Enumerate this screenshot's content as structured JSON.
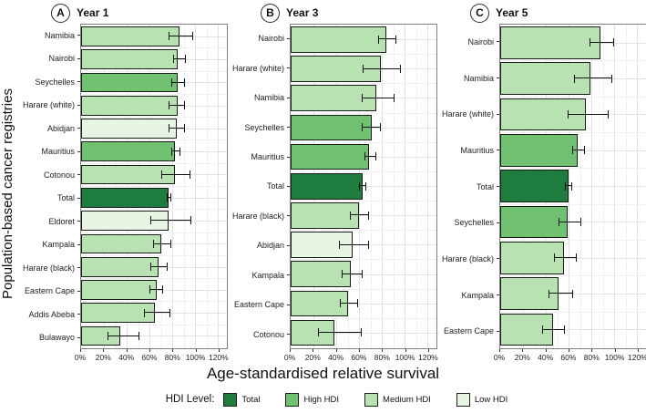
{
  "y_axis_label": "Population-based cancer registries",
  "x_axis_label": "Age-standardised relative survival",
  "legend": {
    "title": "HDI Level:",
    "items": [
      {
        "label": "Total",
        "key": "total"
      },
      {
        "label": "High HDI",
        "key": "high"
      },
      {
        "label": "Medium HDI",
        "key": "medium"
      },
      {
        "label": "Low HDI",
        "key": "low"
      }
    ]
  },
  "colors": {
    "total": "#1d7c3e",
    "high": "#70c272",
    "medium": "#b8e2b1",
    "low": "#e9f5e4",
    "bar_outline": "#1a1a1a",
    "panel_border": "#7f7f7f",
    "grid_major": "#e2e2e2",
    "grid_minor": "#f0f0f0"
  },
  "axis": {
    "x_max": 128,
    "xlim": [
      0,
      120
    ],
    "grid": true,
    "ticks": [
      {
        "value": 0,
        "label": "0%"
      },
      {
        "value": 20,
        "label": "20%"
      },
      {
        "value": 40,
        "label": "40%"
      },
      {
        "value": 60,
        "label": "60%"
      },
      {
        "value": 80,
        "label": "80%"
      },
      {
        "value": 100,
        "label": "100%"
      },
      {
        "value": 120,
        "label": "120%"
      }
    ]
  },
  "chart_data": [
    {
      "type": "bar",
      "panel": "A",
      "title": "Year 1",
      "xlabel": "Age-standardised relative survival",
      "ylabel": "Population-based cancer registries",
      "legend_position": "bottom",
      "bars": [
        {
          "label": "Namibia",
          "hdi": "medium",
          "value": 86,
          "ci_low": 77,
          "ci_high": 98
        },
        {
          "label": "Nairobi",
          "hdi": "medium",
          "value": 85,
          "ci_low": 81,
          "ci_high": 92
        },
        {
          "label": "Seychelles",
          "hdi": "high",
          "value": 85,
          "ci_low": 79,
          "ci_high": 91
        },
        {
          "label": "Harare (white)",
          "hdi": "medium",
          "value": 85,
          "ci_low": 77,
          "ci_high": 91
        },
        {
          "label": "Abidjan",
          "hdi": "low",
          "value": 84,
          "ci_low": 77,
          "ci_high": 91
        },
        {
          "label": "Mauritius",
          "hdi": "high",
          "value": 82,
          "ci_low": 79,
          "ci_high": 87
        },
        {
          "label": "Cotonou",
          "hdi": "medium",
          "value": 82,
          "ci_low": 70,
          "ci_high": 96
        },
        {
          "label": "Total",
          "hdi": "total",
          "value": 77,
          "ci_low": 75,
          "ci_high": 79
        },
        {
          "label": "Eldoret",
          "hdi": "low",
          "value": 77,
          "ci_low": 61,
          "ci_high": 97
        },
        {
          "label": "Kampala",
          "hdi": "medium",
          "value": 70,
          "ci_low": 63,
          "ci_high": 79
        },
        {
          "label": "Harare (black)",
          "hdi": "medium",
          "value": 68,
          "ci_low": 61,
          "ci_high": 76
        },
        {
          "label": "Eastern Cape",
          "hdi": "medium",
          "value": 66,
          "ci_low": 60,
          "ci_high": 72
        },
        {
          "label": "Addis Abeba",
          "hdi": "medium",
          "value": 65,
          "ci_low": 55,
          "ci_high": 78
        },
        {
          "label": "Bulawayo",
          "hdi": "medium",
          "value": 34,
          "ci_low": 23,
          "ci_high": 51
        }
      ]
    },
    {
      "type": "bar",
      "panel": "B",
      "title": "Year 3",
      "xlabel": "Age-standardised relative survival",
      "ylabel": "Population-based cancer registries",
      "legend_position": "bottom",
      "bars": [
        {
          "label": "Nairobi",
          "hdi": "medium",
          "value": 84,
          "ci_low": 77,
          "ci_high": 93
        },
        {
          "label": "Harare (white)",
          "hdi": "medium",
          "value": 79,
          "ci_low": 63,
          "ci_high": 97
        },
        {
          "label": "Namibia",
          "hdi": "medium",
          "value": 75,
          "ci_low": 62,
          "ci_high": 91
        },
        {
          "label": "Seychelles",
          "hdi": "high",
          "value": 71,
          "ci_low": 62,
          "ci_high": 79
        },
        {
          "label": "Mauritius",
          "hdi": "high",
          "value": 69,
          "ci_low": 65,
          "ci_high": 75
        },
        {
          "label": "Total",
          "hdi": "total",
          "value": 63,
          "ci_low": 60,
          "ci_high": 66
        },
        {
          "label": "Harare (black)",
          "hdi": "medium",
          "value": 60,
          "ci_low": 52,
          "ci_high": 69
        },
        {
          "label": "Abidjan",
          "hdi": "low",
          "value": 54,
          "ci_low": 42,
          "ci_high": 69
        },
        {
          "label": "Kampala",
          "hdi": "medium",
          "value": 53,
          "ci_low": 45,
          "ci_high": 63
        },
        {
          "label": "Eastern Cape",
          "hdi": "medium",
          "value": 50,
          "ci_low": 43,
          "ci_high": 59
        },
        {
          "label": "Cotonou",
          "hdi": "medium",
          "value": 38,
          "ci_low": 24,
          "ci_high": 62
        }
      ]
    },
    {
      "type": "bar",
      "panel": "C",
      "title": "Year 5",
      "xlabel": "Age-standardised relative survival",
      "ylabel": "Population-based cancer registries",
      "legend_position": "bottom",
      "bars": [
        {
          "label": "Nairobi",
          "hdi": "medium",
          "value": 88,
          "ci_low": 78,
          "ci_high": 100
        },
        {
          "label": "Namibia",
          "hdi": "medium",
          "value": 79,
          "ci_low": 65,
          "ci_high": 98
        },
        {
          "label": "Harare (white)",
          "hdi": "medium",
          "value": 75,
          "ci_low": 59,
          "ci_high": 95
        },
        {
          "label": "Mauritius",
          "hdi": "high",
          "value": 68,
          "ci_low": 63,
          "ci_high": 74
        },
        {
          "label": "Total",
          "hdi": "total",
          "value": 60,
          "ci_low": 57,
          "ci_high": 63
        },
        {
          "label": "Seychelles",
          "hdi": "high",
          "value": 59,
          "ci_low": 51,
          "ci_high": 71
        },
        {
          "label": "Harare (black)",
          "hdi": "medium",
          "value": 56,
          "ci_low": 47,
          "ci_high": 67
        },
        {
          "label": "Kampala",
          "hdi": "medium",
          "value": 51,
          "ci_low": 42,
          "ci_high": 64
        },
        {
          "label": "Eastern Cape",
          "hdi": "medium",
          "value": 46,
          "ci_low": 37,
          "ci_high": 57
        }
      ]
    }
  ]
}
